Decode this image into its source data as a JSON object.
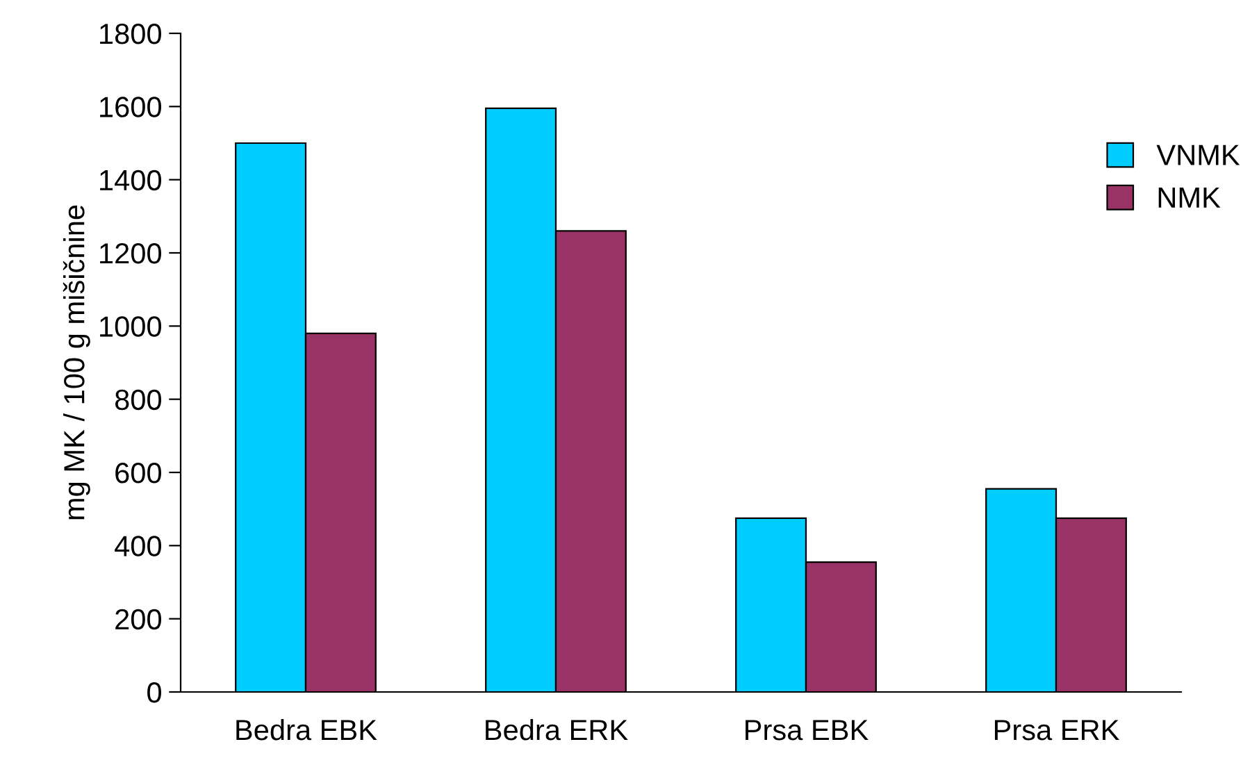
{
  "chart_data": {
    "type": "bar",
    "ylabel": "mg MK / 100 g mišičnine",
    "categories": [
      "Bedra EBK",
      "Bedra ERK",
      "Prsa EBK",
      "Prsa ERK"
    ],
    "series": [
      {
        "name": "VNMK",
        "color": "#00ccff",
        "values": [
          1500,
          1595,
          475,
          555
        ]
      },
      {
        "name": "NMK",
        "color": "#993366",
        "values": [
          980,
          1260,
          355,
          475
        ]
      }
    ],
    "ylim": [
      0,
      1800
    ],
    "yticks": [
      0,
      200,
      400,
      600,
      800,
      1000,
      1200,
      1400,
      1600,
      1800
    ],
    "grid": false,
    "legend": "right"
  }
}
